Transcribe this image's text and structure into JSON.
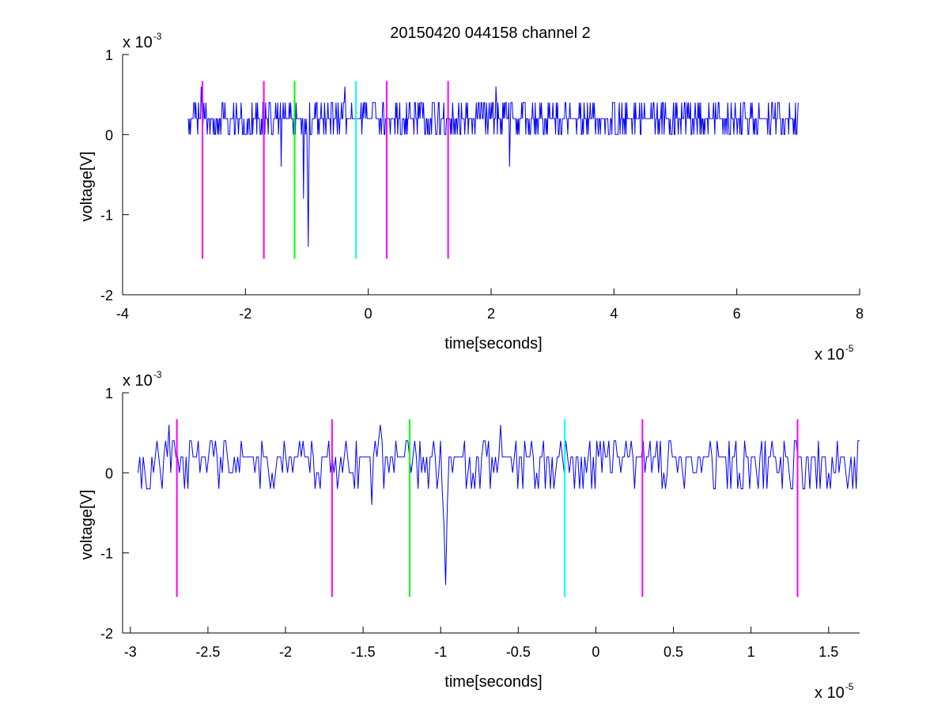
{
  "figure": {
    "title": "20150420 044158 channel 2"
  },
  "chart_data": [
    {
      "type": "line",
      "title": "20150420 044158 channel 2",
      "xlabel": "time[seconds]",
      "ylabel": "voltage[V]",
      "x_exponent_prefix": "x 10",
      "x_exponent": "-5",
      "y_exponent_prefix": "x 10",
      "y_exponent": "-3",
      "xlim": [
        -4,
        8
      ],
      "ylim": [
        -2,
        1
      ],
      "xticks": [
        -4,
        -2,
        0,
        2,
        4,
        6,
        8
      ],
      "xtick_labels": [
        "-4",
        "-2",
        "0",
        "2",
        "4",
        "6",
        "8"
      ],
      "yticks": [
        -2,
        -1,
        0,
        1
      ],
      "ytick_labels": [
        "-2",
        "-1",
        "0",
        "1"
      ],
      "units_note": "x in units of 1e-5 s, y in units of 1e-3 V",
      "series": [
        {
          "color": "#0000ff",
          "x_range": [
            -2.93,
            7.0
          ],
          "baseline": 0.2,
          "noise_levels": [
            0.0,
            0.2,
            0.4
          ],
          "spikes": [
            {
              "x": -0.98,
              "y": -1.4
            },
            {
              "x": -1.05,
              "y": -0.8
            },
            {
              "x": -1.42,
              "y": -0.4
            },
            {
              "x": 2.3,
              "y": -0.4
            },
            {
              "x": 2.08,
              "y": 0.6
            },
            {
              "x": -2.72,
              "y": 0.6
            },
            {
              "x": -0.38,
              "y": 0.6
            }
          ]
        }
      ],
      "markers": [
        {
          "x": -2.7,
          "color": "#ff00ff",
          "y_range": [
            -1.55,
            0.67
          ]
        },
        {
          "x": -1.7,
          "color": "#ff00ff",
          "y_range": [
            -1.55,
            0.67
          ]
        },
        {
          "x": -1.2,
          "color": "#00ff00",
          "y_range": [
            -1.55,
            0.67
          ]
        },
        {
          "x": -0.2,
          "color": "#00ffff",
          "y_range": [
            -1.55,
            0.67
          ]
        },
        {
          "x": 0.3,
          "color": "#ff00ff",
          "y_range": [
            -1.55,
            0.67
          ]
        },
        {
          "x": 1.3,
          "color": "#ff00ff",
          "y_range": [
            -1.55,
            0.67
          ]
        }
      ],
      "grid": false
    },
    {
      "type": "line",
      "xlabel": "time[seconds]",
      "ylabel": "voltage[V]",
      "x_exponent_prefix": "x 10",
      "x_exponent": "-5",
      "y_exponent_prefix": "x 10",
      "y_exponent": "-3",
      "xlim": [
        -3.05,
        1.7
      ],
      "ylim": [
        -2,
        1
      ],
      "xticks": [
        -3,
        -2.5,
        -2,
        -1.5,
        -1,
        -0.5,
        0,
        0.5,
        1,
        1.5
      ],
      "xtick_labels": [
        "-3",
        "-2.5",
        "-2",
        "-1.5",
        "-1",
        "-0.5",
        "0",
        "0.5",
        "1",
        "1.5"
      ],
      "yticks": [
        -2,
        -1,
        0,
        1
      ],
      "ytick_labels": [
        "-2",
        "-1",
        "0",
        "1"
      ],
      "units_note": "x in units of 1e-5 s, y in units of 1e-3 V",
      "series": [
        {
          "color": "#0000ff",
          "x_range": [
            -2.95,
            1.7
          ],
          "baseline": 0.2,
          "noise_levels": [
            -0.2,
            0.0,
            0.2,
            0.4
          ],
          "spikes": [
            {
              "x": -0.97,
              "y": -1.4
            },
            {
              "x": -1.44,
              "y": -0.4
            },
            {
              "x": -2.75,
              "y": 0.6
            },
            {
              "x": -1.39,
              "y": 0.6
            },
            {
              "x": -0.61,
              "y": 0.6
            }
          ]
        }
      ],
      "markers": [
        {
          "x": -2.7,
          "color": "#ff00ff",
          "y_range": [
            -1.55,
            0.67
          ]
        },
        {
          "x": -1.7,
          "color": "#ff00ff",
          "y_range": [
            -1.55,
            0.67
          ]
        },
        {
          "x": -1.2,
          "color": "#00ff00",
          "y_range": [
            -1.55,
            0.67
          ]
        },
        {
          "x": -0.2,
          "color": "#00ffff",
          "y_range": [
            -1.55,
            0.67
          ]
        },
        {
          "x": 0.3,
          "color": "#ff00ff",
          "y_range": [
            -1.55,
            0.67
          ]
        },
        {
          "x": 1.3,
          "color": "#ff00ff",
          "y_range": [
            -1.55,
            0.67
          ]
        }
      ],
      "grid": false
    }
  ]
}
